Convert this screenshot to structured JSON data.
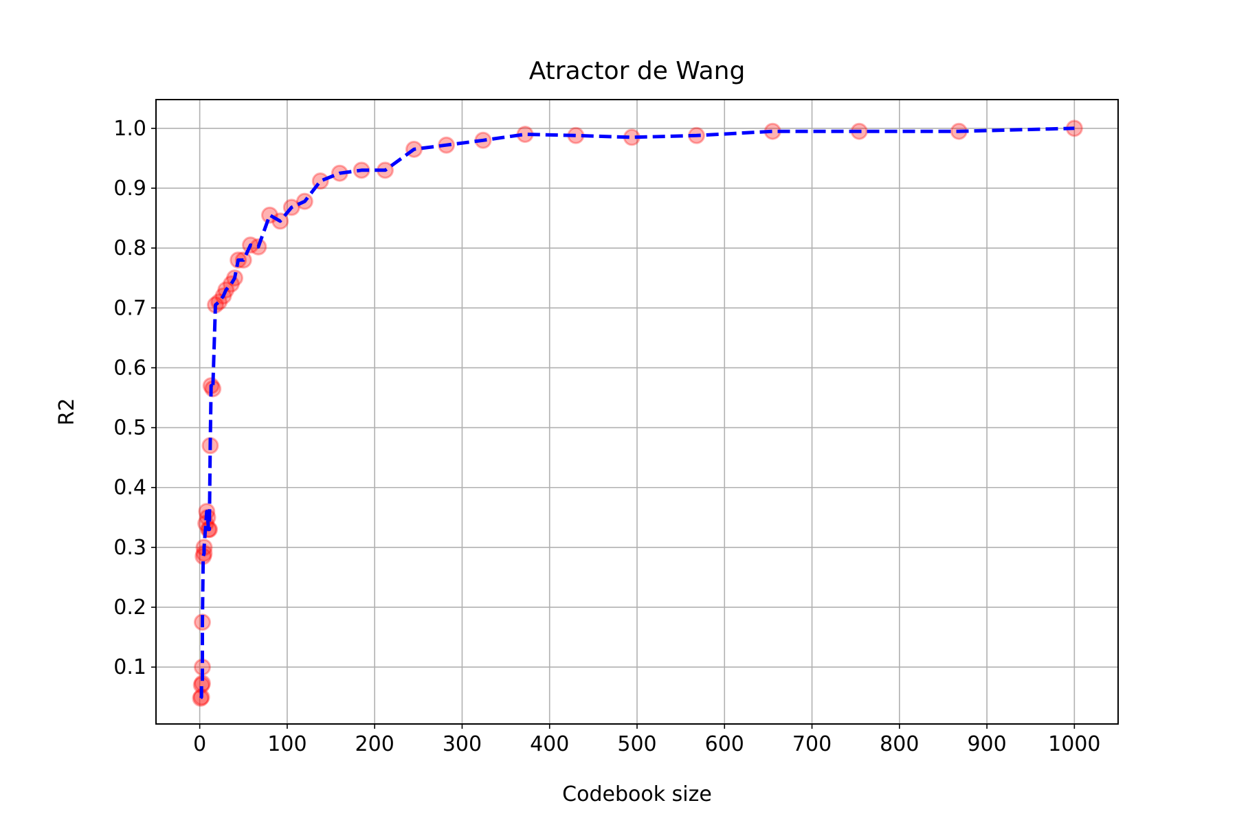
{
  "chart_data": {
    "type": "line",
    "title": "Atractor de Wang",
    "xlabel": "Codebook size",
    "ylabel": "R2",
    "xlim": [
      -50,
      1050
    ],
    "ylim": [
      0.005,
      1.048
    ],
    "xticks": [
      0,
      100,
      200,
      300,
      400,
      500,
      600,
      700,
      800,
      900,
      1000
    ],
    "xtick_labels": [
      "0",
      "100",
      "200",
      "300",
      "400",
      "500",
      "600",
      "700",
      "800",
      "900",
      "1000"
    ],
    "yticks": [
      0.1,
      0.2,
      0.3,
      0.4,
      0.5,
      0.6,
      0.7,
      0.8,
      0.9,
      1.0
    ],
    "ytick_labels": [
      "0.1",
      "0.2",
      "0.3",
      "0.4",
      "0.5",
      "0.6",
      "0.7",
      "0.8",
      "0.9",
      "1.0"
    ],
    "grid": true,
    "series": [
      {
        "line_style": "dashed",
        "line_color": "#0000ff",
        "marker": "circle",
        "marker_color": "#ff0000",
        "points": [
          [
            1,
            0.048
          ],
          [
            2,
            0.05
          ],
          [
            2,
            0.07
          ],
          [
            3,
            0.073
          ],
          [
            3,
            0.1
          ],
          [
            3,
            0.175
          ],
          [
            4,
            0.285
          ],
          [
            5,
            0.29
          ],
          [
            5,
            0.3
          ],
          [
            7,
            0.34
          ],
          [
            8,
            0.36
          ],
          [
            9,
            0.35
          ],
          [
            10,
            0.33
          ],
          [
            11,
            0.33
          ],
          [
            12,
            0.47
          ],
          [
            13,
            0.57
          ],
          [
            15,
            0.565
          ],
          [
            18,
            0.705
          ],
          [
            22,
            0.71
          ],
          [
            27,
            0.72
          ],
          [
            30,
            0.73
          ],
          [
            36,
            0.74
          ],
          [
            40,
            0.75
          ],
          [
            44,
            0.78
          ],
          [
            50,
            0.78
          ],
          [
            58,
            0.805
          ],
          [
            67,
            0.802
          ],
          [
            80,
            0.855
          ],
          [
            92,
            0.845
          ],
          [
            105,
            0.868
          ],
          [
            120,
            0.878
          ],
          [
            138,
            0.912
          ],
          [
            160,
            0.925
          ],
          [
            185,
            0.93
          ],
          [
            212,
            0.93
          ],
          [
            245,
            0.965
          ],
          [
            282,
            0.972
          ],
          [
            324,
            0.98
          ],
          [
            372,
            0.99
          ],
          [
            430,
            0.988
          ],
          [
            494,
            0.985
          ],
          [
            568,
            0.988
          ],
          [
            655,
            0.995
          ],
          [
            754,
            0.995
          ],
          [
            868,
            0.995
          ],
          [
            1000,
            1.0
          ]
        ]
      }
    ]
  }
}
